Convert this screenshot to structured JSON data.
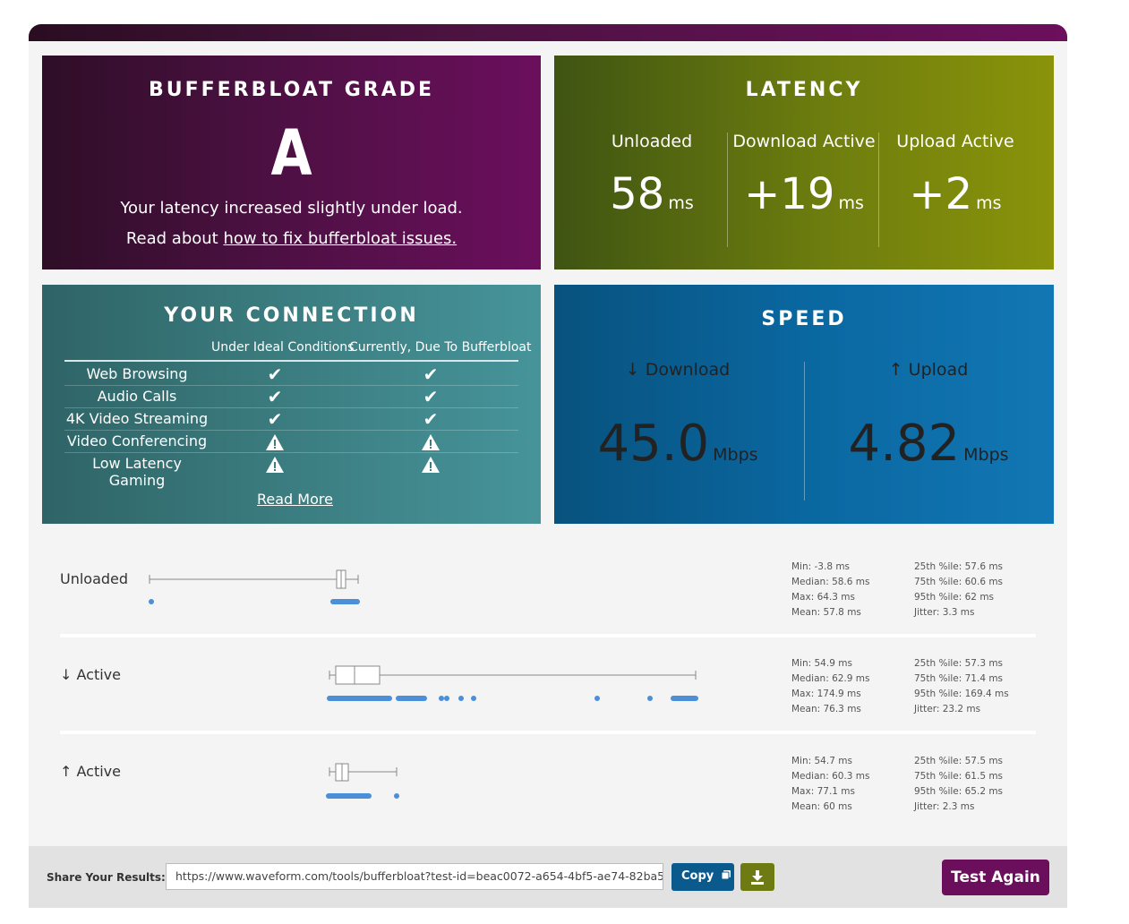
{
  "grade": {
    "title": "BUFFERBLOAT GRADE",
    "letter": "A",
    "line1": "Your latency increased slightly under load.",
    "line2_prefix": "Read about ",
    "link": "how to fix bufferbloat issues."
  },
  "latency": {
    "title": "LATENCY",
    "unit": "ms",
    "cols": [
      {
        "label": "Unloaded",
        "value": "58"
      },
      {
        "label": "Download Active",
        "value": "+19"
      },
      {
        "label": "Upload Active",
        "value": "+2"
      }
    ]
  },
  "connection": {
    "title": "YOUR CONNECTION",
    "col_ideal": "Under Ideal Conditions",
    "col_current": "Currently, Due To Bufferbloat",
    "rows": [
      {
        "name": "Web Browsing",
        "ideal": "check",
        "current": "check"
      },
      {
        "name": "Audio Calls",
        "ideal": "check",
        "current": "check"
      },
      {
        "name": "4K Video Streaming",
        "ideal": "check",
        "current": "check"
      },
      {
        "name": "Video Conferencing",
        "ideal": "warning",
        "current": "warning"
      },
      {
        "name": "Low Latency Gaming",
        "ideal": "warning",
        "current": "warning"
      }
    ],
    "read_more": "Read More"
  },
  "speed": {
    "title": "SPEED",
    "unit": "Mbps",
    "download_label": "↓ Download",
    "download_value": "45.0",
    "upload_label": "↑ Upload",
    "upload_value": "4.82"
  },
  "latency_plots": [
    {
      "label": "Unloaded",
      "stats": {
        "min": "Min: -3.8 ms",
        "median": "Median: 58.6 ms",
        "max": "Max: 64.3 ms",
        "mean": "Mean: 57.8 ms",
        "p25": "25th %ile: 57.6 ms",
        "p75": "75th %ile: 60.6 ms",
        "p95": "95th %ile: 62 ms",
        "jitter": "Jitter: 3.3 ms"
      }
    },
    {
      "label": "↓ Active",
      "stats": {
        "min": "Min: 54.9 ms",
        "median": "Median: 62.9 ms",
        "max": "Max: 174.9 ms",
        "mean": "Mean: 76.3 ms",
        "p25": "25th %ile: 57.3 ms",
        "p75": "75th %ile: 71.4 ms",
        "p95": "95th %ile: 169.4 ms",
        "jitter": "Jitter: 23.2 ms"
      }
    },
    {
      "label": "↑ Active",
      "stats": {
        "min": "Min: 54.7 ms",
        "median": "Median: 60.3 ms",
        "max": "Max: 77.1 ms",
        "mean": "Mean: 60 ms",
        "p25": "25th %ile: 57.5 ms",
        "p75": "75th %ile: 61.5 ms",
        "p95": "95th %ile: 65.2 ms",
        "jitter": "Jitter: 2.3 ms"
      }
    }
  ],
  "footer": {
    "share_label": "Share Your Results:",
    "share_url": "https://www.waveform.com/tools/bufferbloat?test-id=beac0072-a654-4bf5-ae74-82ba5",
    "copy_label": "Copy",
    "test_again": "Test Again"
  },
  "colors": {
    "grade": "#6b0f5c",
    "latency": "#7a870c",
    "connection": "#3b7d80",
    "speed": "#0a67a0",
    "dots": "#4a8fd8"
  },
  "icons": {
    "check": "check-icon",
    "warning": "warning-icon",
    "copy": "copy-icon",
    "download": "download-icon"
  }
}
